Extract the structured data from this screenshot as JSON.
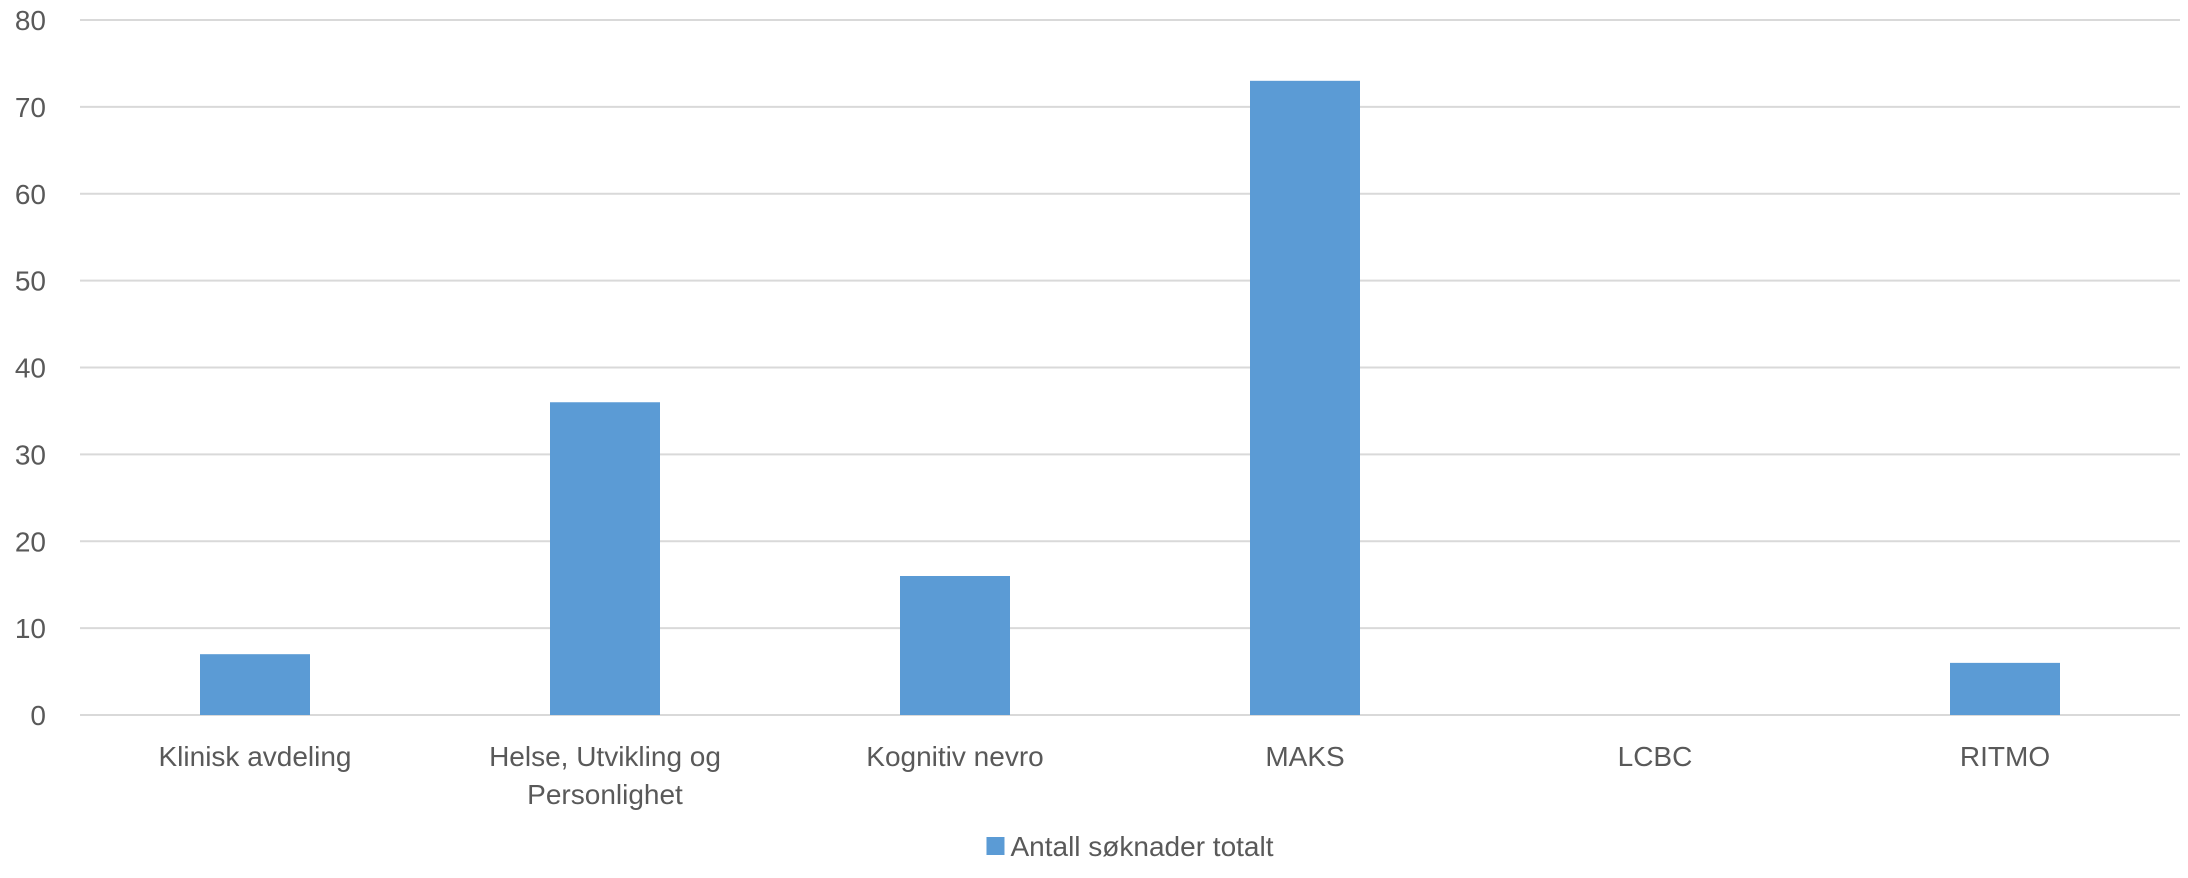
{
  "chart_data": {
    "type": "bar",
    "title": "",
    "xlabel": "",
    "ylabel": "",
    "categories": [
      [
        "Klinisk avdeling"
      ],
      [
        "Helse, Utvikling og",
        "Personlighet"
      ],
      [
        "Kognitiv nevro"
      ],
      [
        "MAKS"
      ],
      [
        "LCBC"
      ],
      [
        "RITMO"
      ]
    ],
    "series": [
      {
        "name": "Antall søknader totalt",
        "values": [
          7,
          36,
          16,
          73,
          0,
          6
        ],
        "color": "#5B9BD5"
      }
    ],
    "ylim": [
      0,
      80
    ],
    "yticks": [
      0,
      10,
      20,
      30,
      40,
      50,
      60,
      70,
      80
    ],
    "grid": true,
    "legend_position": "bottom"
  },
  "colors": {
    "bar": "#5B9BD5",
    "grid": "#D9D9D9",
    "text": "#595959"
  }
}
